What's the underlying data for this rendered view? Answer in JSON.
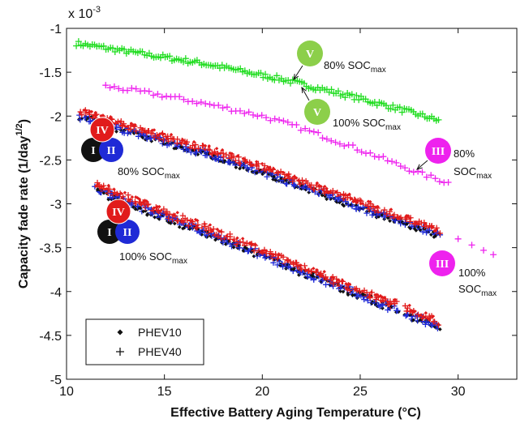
{
  "chart_data": {
    "type": "scatter",
    "xlabel": "Effective Battery Aging Temperature (°C)",
    "ylabel": "Capacity fade rate (1/day^1/2)",
    "y_multiplier_label": "x 10^-3",
    "xlim": [
      10,
      33
    ],
    "ylim": [
      -5,
      -1
    ],
    "x_ticks": [
      10,
      15,
      20,
      25,
      30
    ],
    "y_ticks": [
      -1,
      -1.5,
      -2,
      -2.5,
      -3,
      -3.5,
      -4,
      -4.5,
      -5
    ],
    "grid": false,
    "legend": {
      "placement": "bottom-left",
      "entries": [
        {
          "marker": "diamond",
          "label": "PHEV10"
        },
        {
          "marker": "plus",
          "label": "PHEV40"
        }
      ]
    },
    "series": [
      {
        "group": "V",
        "color": "#22dd22",
        "x": [
          10.5,
          13,
          15,
          17,
          19,
          21,
          23,
          25,
          27,
          29
        ],
        "y": [
          -1.17,
          -1.26,
          -1.33,
          -1.4,
          -1.49,
          -1.58,
          -1.69,
          -1.8,
          -1.92,
          -2.05
        ]
      },
      {
        "group": "III 80% SOCmax",
        "color": "#ee22ee",
        "x": [
          12,
          14,
          16,
          18,
          20,
          22,
          24,
          26,
          28,
          29.5
        ],
        "y": [
          -1.66,
          -1.73,
          -1.81,
          -1.9,
          -2.0,
          -2.14,
          -2.3,
          -2.47,
          -2.65,
          -2.76
        ]
      },
      {
        "group": "I/II/IV 80% SOCmax",
        "color": "#111111",
        "x": [
          10.7,
          13,
          15,
          17,
          19,
          21,
          23,
          25,
          27,
          29
        ],
        "y": [
          -2.0,
          -2.16,
          -2.29,
          -2.42,
          -2.56,
          -2.72,
          -2.88,
          -3.04,
          -3.2,
          -3.36
        ]
      },
      {
        "group": "I/II/IV 100% SOCmax",
        "color": "#111111",
        "x": [
          11.5,
          13,
          15,
          17,
          19,
          21,
          23,
          25,
          27,
          29
        ],
        "y": [
          -2.84,
          -2.98,
          -3.15,
          -3.32,
          -3.5,
          -3.68,
          -3.86,
          -4.04,
          -4.22,
          -4.4
        ]
      },
      {
        "group": "III 100% SOCmax",
        "color": "#ee22ee",
        "x": [
          30,
          30.7,
          31.3,
          31.8
        ],
        "y": [
          -3.4,
          -3.47,
          -3.53,
          -3.58
        ]
      }
    ],
    "annotations": [
      {
        "badge": "V",
        "text": "80% SOCmax",
        "color": "#8ccf4a"
      },
      {
        "badge": "V",
        "text": "100% SOCmax",
        "color": "#8ccf4a"
      },
      {
        "badge": "III",
        "text": "80%",
        "text2": "SOCmax",
        "color": "#ee22ee"
      },
      {
        "badge": "III",
        "text": "100%",
        "text2": "SOCmax",
        "color": "#ee22ee"
      },
      {
        "badges": [
          "IV",
          "I",
          "II"
        ],
        "text": "80% SOCmax"
      },
      {
        "badges": [
          "IV",
          "I",
          "II"
        ],
        "text": "100% SOCmax"
      }
    ],
    "colors": {
      "black": "#111111",
      "blue": "#1f2ad6",
      "red": "#e11b1b",
      "green": "#22dd22",
      "magenta": "#ee22ee",
      "badge_green": "#8ccf4a"
    }
  }
}
